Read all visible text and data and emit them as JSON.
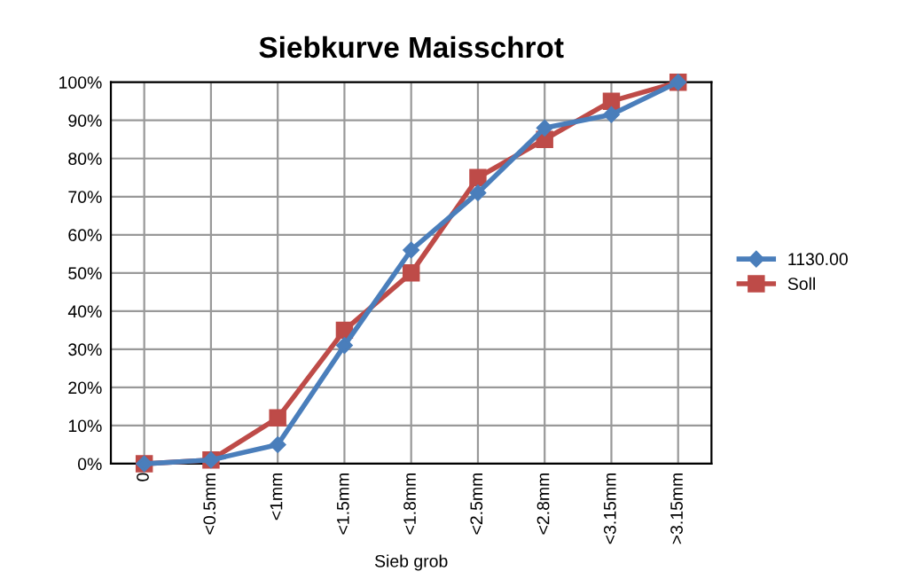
{
  "chart_data": {
    "type": "line",
    "title": "Siebkurve Maisschrot",
    "xlabel": "Sieb grob",
    "categories": [
      "0",
      "<0.5mm",
      "<1mm",
      "<1.5mm",
      "<1.8mm",
      "<2.5mm",
      "<2.8mm",
      "<3.15mm",
      ">3.15mm"
    ],
    "series": [
      {
        "name": "1130.00",
        "color": "#4a7ebb",
        "marker": "diamond",
        "values": [
          0,
          1,
          5,
          31,
          56,
          71,
          88,
          91.5,
          100
        ]
      },
      {
        "name": "Soll",
        "color": "#be4b48",
        "marker": "square",
        "values": [
          0,
          1,
          12,
          35,
          50,
          75,
          85,
          95,
          100
        ]
      }
    ],
    "ylim": [
      0,
      100
    ],
    "yticks": [
      {
        "value": 0,
        "label": "0%"
      },
      {
        "value": 10,
        "label": "10%"
      },
      {
        "value": 20,
        "label": "20%"
      },
      {
        "value": 30,
        "label": "30%"
      },
      {
        "value": 40,
        "label": "40%"
      },
      {
        "value": 50,
        "label": "50%"
      },
      {
        "value": 60,
        "label": "60%"
      },
      {
        "value": 70,
        "label": "70%"
      },
      {
        "value": 80,
        "label": "80%"
      },
      {
        "value": 90,
        "label": "90%"
      },
      {
        "value": 100,
        "label": "100%"
      }
    ],
    "grid": true,
    "legend": "right",
    "line_style": "solid"
  }
}
